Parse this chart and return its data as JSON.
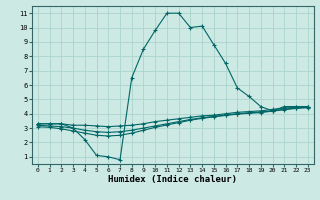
{
  "xlabel": "Humidex (Indice chaleur)",
  "ylabel": "",
  "xlim": [
    -0.5,
    23.5
  ],
  "ylim": [
    0.5,
    11.5
  ],
  "yticks": [
    1,
    2,
    3,
    4,
    5,
    6,
    7,
    8,
    9,
    10,
    11
  ],
  "xticks": [
    0,
    1,
    2,
    3,
    4,
    5,
    6,
    7,
    8,
    9,
    10,
    11,
    12,
    13,
    14,
    15,
    16,
    17,
    18,
    19,
    20,
    21,
    22,
    23
  ],
  "xtick_labels": [
    "0",
    "1",
    "2",
    "3",
    "4",
    "5",
    "6",
    "7",
    "8",
    "9",
    "10",
    "11",
    "12",
    "13",
    "14",
    "15",
    "16",
    "17",
    "18",
    "19",
    "20",
    "21",
    "22",
    "23"
  ],
  "background_color": "#cce9e4",
  "grid_color": "#aad4cc",
  "line_color": "#006666",
  "line1_x": [
    0,
    1,
    2,
    3,
    4,
    5,
    6,
    7,
    8,
    9,
    10,
    11,
    12,
    13,
    14,
    15,
    16,
    17,
    18,
    19,
    20,
    21,
    22,
    23
  ],
  "line1_y": [
    3.3,
    3.3,
    3.3,
    3.0,
    2.2,
    1.1,
    1.0,
    0.8,
    6.5,
    8.5,
    9.8,
    11.0,
    11.0,
    10.0,
    10.1,
    8.8,
    7.5,
    5.8,
    5.2,
    4.5,
    4.2,
    4.5,
    4.5,
    4.5
  ],
  "line2_x": [
    0,
    1,
    2,
    3,
    4,
    5,
    6,
    7,
    8,
    9,
    10,
    11,
    12,
    13,
    14,
    15,
    16,
    17,
    18,
    19,
    20,
    21,
    22,
    23
  ],
  "line2_y": [
    3.3,
    3.3,
    3.3,
    3.2,
    3.2,
    3.15,
    3.1,
    3.15,
    3.2,
    3.3,
    3.45,
    3.55,
    3.65,
    3.75,
    3.85,
    3.9,
    4.0,
    4.1,
    4.15,
    4.2,
    4.3,
    4.4,
    4.45,
    4.5
  ],
  "line3_x": [
    0,
    1,
    2,
    3,
    4,
    5,
    6,
    7,
    8,
    9,
    10,
    11,
    12,
    13,
    14,
    15,
    16,
    17,
    18,
    19,
    20,
    21,
    22,
    23
  ],
  "line3_y": [
    3.2,
    3.15,
    3.1,
    3.0,
    2.85,
    2.75,
    2.7,
    2.75,
    2.85,
    3.0,
    3.15,
    3.3,
    3.45,
    3.6,
    3.72,
    3.82,
    3.92,
    4.0,
    4.07,
    4.12,
    4.2,
    4.32,
    4.4,
    4.45
  ],
  "line4_x": [
    0,
    1,
    2,
    3,
    4,
    5,
    6,
    7,
    8,
    9,
    10,
    11,
    12,
    13,
    14,
    15,
    16,
    17,
    18,
    19,
    20,
    21,
    22,
    23
  ],
  "line4_y": [
    3.1,
    3.05,
    2.95,
    2.8,
    2.65,
    2.5,
    2.45,
    2.5,
    2.65,
    2.85,
    3.05,
    3.22,
    3.38,
    3.55,
    3.68,
    3.78,
    3.88,
    3.97,
    4.03,
    4.08,
    4.18,
    4.28,
    4.37,
    4.42
  ]
}
